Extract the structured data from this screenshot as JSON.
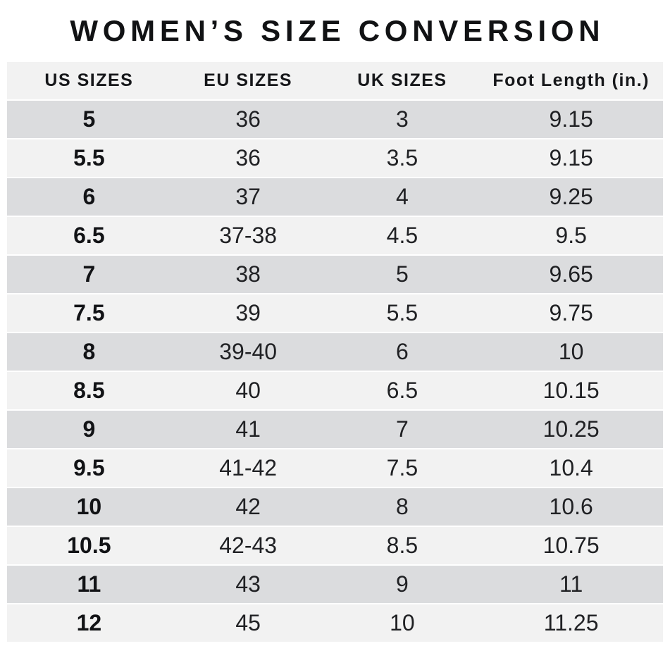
{
  "title": "WOMEN’S SIZE CONVERSION",
  "colors": {
    "background": "#ffffff",
    "header_bg": "#f2f2f2",
    "row_odd_bg": "#dbdcde",
    "row_even_bg": "#f2f2f2",
    "separator": "#ffffff",
    "title_text": "#111214",
    "cell_text": "#202124"
  },
  "chart_data": {
    "type": "table",
    "title": "WOMEN’S SIZE CONVERSION",
    "columns": [
      "US SIZES",
      "EU SIZES",
      "UK SIZES",
      "Foot Length (in.)"
    ],
    "rows": [
      [
        "5",
        "36",
        "3",
        "9.15"
      ],
      [
        "5.5",
        "36",
        "3.5",
        "9.15"
      ],
      [
        "6",
        "37",
        "4",
        "9.25"
      ],
      [
        "6.5",
        "37-38",
        "4.5",
        "9.5"
      ],
      [
        "7",
        "38",
        "5",
        "9.65"
      ],
      [
        "7.5",
        "39",
        "5.5",
        "9.75"
      ],
      [
        "8",
        "39-40",
        "6",
        "10"
      ],
      [
        "8.5",
        "40",
        "6.5",
        "10.15"
      ],
      [
        "9",
        "41",
        "7",
        "10.25"
      ],
      [
        "9.5",
        "41-42",
        "7.5",
        "10.4"
      ],
      [
        "10",
        "42",
        "8",
        "10.6"
      ],
      [
        "10.5",
        "42-43",
        "8.5",
        "10.75"
      ],
      [
        "11",
        "43",
        "9",
        "11"
      ],
      [
        "12",
        "45",
        "10",
        "11.25"
      ]
    ],
    "layout": {
      "row_striping": "odd rows dark gray, even rows light gray",
      "first_column_bold": true,
      "row_separator": "thin white line"
    }
  }
}
